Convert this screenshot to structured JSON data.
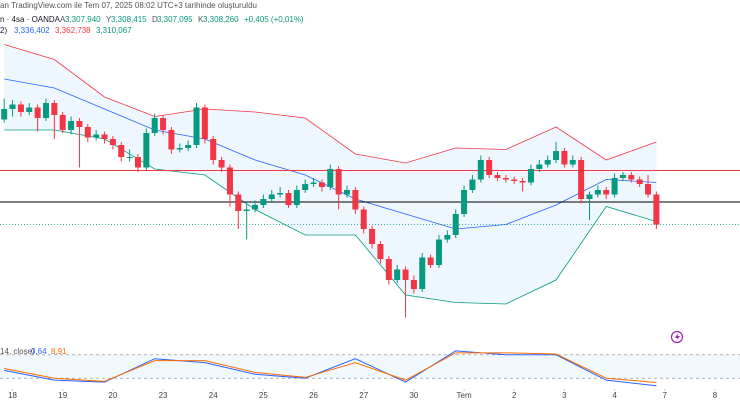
{
  "header": {
    "created": "an TradingView.com ile Tem 07, 2025 08:02 UTC+3 tarihinde oluşturuldu",
    "symbol": "n · 4sa · OANDA",
    "ohlc": [
      {
        "key": "A",
        "value": "3,307,940"
      },
      {
        "key": "Y",
        "value": "3,308,415"
      },
      {
        "key": "D",
        "value": "3,307,095"
      },
      {
        "key": "K",
        "value": "3,308,260"
      }
    ],
    "change": "+0,405 (+0,01%)",
    "bb_label": "2)",
    "bb_values": [
      "3,336,402",
      "3,362,738",
      "3,310,067"
    ]
  },
  "chart_data": {
    "type": "candlestick",
    "up_color": "#089981",
    "down_color": "#f23645",
    "xlim": [
      -0.5,
      88
    ],
    "xticks": [
      {
        "value": 1,
        "label": "18"
      },
      {
        "value": 7,
        "label": "19"
      },
      {
        "value": 13,
        "label": "20"
      },
      {
        "value": 19,
        "label": "23"
      },
      {
        "value": 25,
        "label": "24"
      },
      {
        "value": 31,
        "label": "25"
      },
      {
        "value": 37,
        "label": "26"
      },
      {
        "value": 43,
        "label": "27"
      },
      {
        "value": 49,
        "label": "30"
      },
      {
        "value": 55,
        "label": "Tem"
      },
      {
        "value": 61,
        "label": "2"
      },
      {
        "value": 67,
        "label": "3"
      },
      {
        "value": 73,
        "label": "4"
      },
      {
        "value": 79,
        "label": "7"
      },
      {
        "value": 85,
        "label": "8"
      }
    ],
    "ylim": [
      3231,
      3431
    ],
    "ohlc": [
      [
        3378,
        3392,
        3376,
        3385
      ],
      [
        3385,
        3391,
        3380,
        3388
      ],
      [
        3388,
        3390,
        3380,
        3383
      ],
      [
        3383,
        3389,
        3381,
        3386
      ],
      [
        3386,
        3388,
        3370,
        3379
      ],
      [
        3379,
        3392,
        3377,
        3389
      ],
      [
        3389,
        3391,
        3365,
        3381
      ],
      [
        3381,
        3383,
        3369,
        3371
      ],
      [
        3371,
        3380,
        3368,
        3377
      ],
      [
        3377,
        3379,
        3346,
        3373
      ],
      [
        3373,
        3375,
        3363,
        3366
      ],
      [
        3366,
        3371,
        3364,
        3368
      ],
      [
        3368,
        3370,
        3362,
        3365
      ],
      [
        3365,
        3367,
        3358,
        3361
      ],
      [
        3361,
        3363,
        3350,
        3353
      ],
      [
        3353,
        3358,
        3350,
        3353
      ],
      [
        3353,
        3355,
        3343,
        3346
      ],
      [
        3346,
        3372,
        3344,
        3369
      ],
      [
        3369,
        3382,
        3367,
        3379
      ],
      [
        3379,
        3381,
        3368,
        3371
      ],
      [
        3371,
        3373,
        3355,
        3358
      ],
      [
        3358,
        3362,
        3356,
        3359
      ],
      [
        3359,
        3364,
        3357,
        3361
      ],
      [
        3361,
        3389,
        3359,
        3386
      ],
      [
        3386,
        3388,
        3362,
        3365
      ],
      [
        3365,
        3367,
        3348,
        3351
      ],
      [
        3351,
        3353,
        3343,
        3346
      ],
      [
        3346,
        3348,
        3320,
        3328
      ],
      [
        3328,
        3330,
        3305,
        3317
      ],
      [
        3317,
        3322,
        3298,
        3318
      ],
      [
        3318,
        3324,
        3316,
        3321
      ],
      [
        3321,
        3328,
        3319,
        3325
      ],
      [
        3325,
        3331,
        3323,
        3328
      ],
      [
        3328,
        3333,
        3326,
        3329
      ],
      [
        3329,
        3331,
        3319,
        3321
      ],
      [
        3321,
        3334,
        3319,
        3331
      ],
      [
        3331,
        3338,
        3329,
        3335
      ],
      [
        3335,
        3339,
        3333,
        3336
      ],
      [
        3336,
        3338,
        3330,
        3333
      ],
      [
        3333,
        3348,
        3331,
        3345
      ],
      [
        3345,
        3347,
        3318,
        3328
      ],
      [
        3328,
        3334,
        3326,
        3331
      ],
      [
        3331,
        3333,
        3315,
        3318
      ],
      [
        3318,
        3320,
        3302,
        3305
      ],
      [
        3305,
        3307,
        3292,
        3295
      ],
      [
        3295,
        3297,
        3282,
        3285
      ],
      [
        3285,
        3287,
        3268,
        3271
      ],
      [
        3271,
        3281,
        3269,
        3278
      ],
      [
        3278,
        3280,
        3246,
        3271
      ],
      [
        3271,
        3274,
        3262,
        3265
      ],
      [
        3265,
        3289,
        3263,
        3286
      ],
      [
        3286,
        3288,
        3279,
        3281
      ],
      [
        3281,
        3301,
        3279,
        3298
      ],
      [
        3298,
        3304,
        3296,
        3301
      ],
      [
        3301,
        3318,
        3299,
        3315
      ],
      [
        3315,
        3334,
        3313,
        3331
      ],
      [
        3331,
        3341,
        3329,
        3338
      ],
      [
        3338,
        3354,
        3336,
        3351
      ],
      [
        3351,
        3353,
        3339,
        3341
      ],
      [
        3341,
        3343,
        3337,
        3339
      ],
      [
        3339,
        3341,
        3336,
        3338
      ],
      [
        3338,
        3340,
        3335,
        3337
      ],
      [
        3337,
        3339,
        3330,
        3336
      ],
      [
        3336,
        3348,
        3334,
        3345
      ],
      [
        3345,
        3351,
        3343,
        3348
      ],
      [
        3348,
        3354,
        3346,
        3351
      ],
      [
        3351,
        3363,
        3349,
        3357
      ],
      [
        3357,
        3359,
        3346,
        3348
      ],
      [
        3348,
        3354,
        3346,
        3351
      ],
      [
        3351,
        3353,
        3322,
        3325
      ],
      [
        3325,
        3330,
        3311,
        3328
      ],
      [
        3328,
        3334,
        3326,
        3331
      ],
      [
        3331,
        3333,
        3325,
        3328
      ],
      [
        3328,
        3342,
        3326,
        3339
      ],
      [
        3339,
        3343,
        3337,
        3341
      ],
      [
        3341,
        3343,
        3336,
        3338
      ],
      [
        3338,
        3340,
        3333,
        3335
      ],
      [
        3335,
        3341,
        3326,
        3328
      ],
      [
        3328,
        3330,
        3305,
        3308
      ]
    ],
    "bands": {
      "x": [
        0,
        6,
        12,
        18,
        24,
        30,
        36,
        42,
        48,
        54,
        60,
        66,
        72,
        78
      ],
      "upper": [
        3428,
        3418,
        3393,
        3380,
        3385,
        3383,
        3379,
        3355,
        3349,
        3359,
        3358,
        3373,
        3351,
        3363
      ],
      "middle": [
        3405,
        3399,
        3385,
        3371,
        3365,
        3351,
        3341,
        3325,
        3315,
        3305,
        3308,
        3321,
        3338,
        3336
      ],
      "lower": [
        3371,
        3371,
        3365,
        3345,
        3341,
        3318,
        3301,
        3301,
        3261,
        3256,
        3255,
        3271,
        3320,
        3310
      ],
      "upper_color": "#f23645",
      "middle_color": "#2962ff",
      "lower_color": "#089981",
      "fill": "#2196f3"
    },
    "levels": [
      {
        "value": 3344,
        "color": "#f23645"
      },
      {
        "value": 3323,
        "color": "#000000"
      },
      {
        "value": 3308,
        "color": "#089981",
        "dashed": true
      }
    ],
    "oscillator": {
      "label": "14, close)",
      "ylim": [
        0,
        100
      ],
      "levels": [
        20,
        80
      ],
      "x": [
        0,
        6,
        12,
        18,
        24,
        30,
        36,
        42,
        48,
        54,
        60,
        66,
        72,
        78
      ],
      "series": [
        {
          "color": "#2962ff",
          "values": [
            40,
            15,
            10,
            70,
            60,
            30,
            20,
            70,
            10,
            90,
            80,
            80,
            15,
            0.64
          ],
          "value_label": "0,64"
        },
        {
          "color": "#ff6d00",
          "values": [
            45,
            20,
            12,
            65,
            65,
            35,
            22,
            60,
            15,
            85,
            85,
            82,
            20,
            8.91
          ],
          "value_label": "8,91"
        }
      ]
    }
  }
}
